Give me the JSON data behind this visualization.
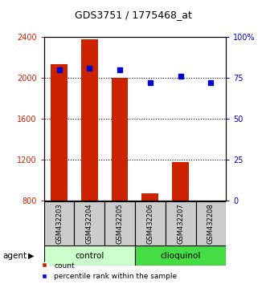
{
  "title": "GDS3751 / 1775468_at",
  "samples": [
    "GSM432203",
    "GSM432204",
    "GSM432205",
    "GSM432206",
    "GSM432207",
    "GSM432208"
  ],
  "counts": [
    2130,
    2380,
    2000,
    870,
    1170,
    800
  ],
  "percentile_ranks": [
    80,
    81,
    80,
    72,
    76,
    72
  ],
  "groups": [
    "control",
    "control",
    "control",
    "clioquinol",
    "clioquinol",
    "clioquinol"
  ],
  "bar_color": "#cc2200",
  "dot_color": "#0000cc",
  "control_color": "#ccffcc",
  "clioquinol_color": "#44dd44",
  "group_bg_color": "#cccccc",
  "ylim_left": [
    800,
    2400
  ],
  "ylim_right": [
    0,
    100
  ],
  "yticks_left": [
    800,
    1200,
    1600,
    2000,
    2400
  ],
  "yticks_right": [
    0,
    25,
    50,
    75,
    100
  ],
  "ytick_labels_right": [
    "0",
    "25",
    "50",
    "75",
    "100%"
  ],
  "left_axis_color": "#cc2200",
  "right_axis_color": "#0000cc",
  "legend_count_label": "count",
  "legend_percentile_label": "percentile rank within the sample",
  "agent_label": "agent",
  "figsize": [
    3.31,
    3.54
  ],
  "dpi": 100
}
